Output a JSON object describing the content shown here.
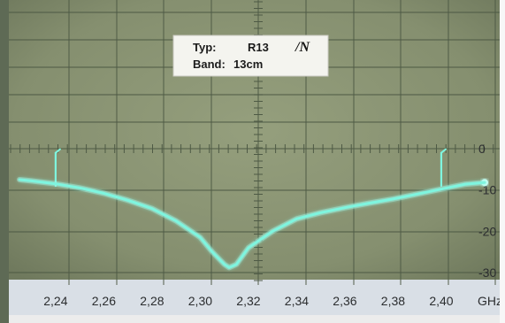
{
  "colors": {
    "screen": "#8a9674",
    "screen_dark": "#6d7a5d",
    "grid": "#4e5a45",
    "trace": "#7ff5df",
    "trace_glow": "#c9fff4",
    "axis_text": "#2b2d2f",
    "card": "#f4f4ef"
  },
  "label_card": {
    "typ_label": "Typ:",
    "typ_value": "R13",
    "handwritten_mark": "/N",
    "band_label": "Band:",
    "band_value": "13cm"
  },
  "chart_data": {
    "type": "line",
    "x_unit_label": "GHz",
    "xlim": [
      2.225,
      2.418
    ],
    "ylim": [
      -33,
      1
    ],
    "x_ticks": [
      "2,24",
      "2,26",
      "2,28",
      "2,30",
      "2,32",
      "2,34",
      "2,36",
      "2,38",
      "2,40"
    ],
    "x_tick_values": [
      2.24,
      2.26,
      2.28,
      2.3,
      2.32,
      2.34,
      2.36,
      2.38,
      2.4
    ],
    "y_ticks": [
      "0",
      "-10",
      "-20",
      "-30"
    ],
    "y_tick_values": [
      0,
      -10,
      -20,
      -30
    ],
    "grid": true,
    "markers": [
      {
        "x": 2.24,
        "y_from": -9,
        "y_to": -1
      },
      {
        "x": 2.4,
        "y_from": -9,
        "y_to": -1
      }
    ],
    "series": [
      {
        "x": [
          2.225,
          2.23,
          2.24,
          2.25,
          2.26,
          2.27,
          2.28,
          2.29,
          2.3,
          2.305,
          2.31,
          2.312,
          2.315,
          2.32,
          2.33,
          2.34,
          2.35,
          2.36,
          2.37,
          2.38,
          2.39,
          2.4,
          2.41,
          2.418
        ],
        "y": [
          -7.5,
          -7.8,
          -8.5,
          -9.5,
          -10.8,
          -12.5,
          -14.5,
          -17.5,
          -21.5,
          -25.0,
          -28.0,
          -28.8,
          -28.0,
          -24.0,
          -20.0,
          -17.0,
          -15.5,
          -14.3,
          -13.2,
          -12.2,
          -11.0,
          -9.8,
          -8.6,
          -8.2
        ]
      }
    ]
  }
}
